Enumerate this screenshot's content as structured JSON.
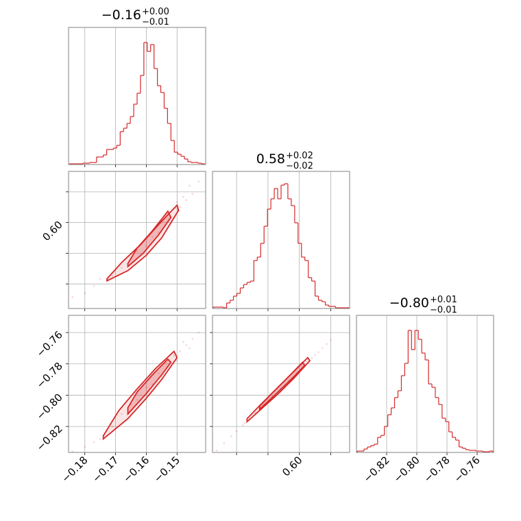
{
  "chart_data": [
    {
      "type": "histogram",
      "title": "−0.16",
      "title_upper": "+0.00",
      "title_lower": "−0.01",
      "color": "#d62728",
      "grid": true,
      "xlim": [
        -0.1853,
        -0.1407
      ],
      "ylim": [
        0,
        200
      ],
      "xticks": [
        -0.18,
        -0.17,
        -0.16,
        -0.15
      ],
      "bins": [
        -0.185,
        -0.1839,
        -0.1828,
        -0.1817,
        -0.1806,
        -0.1795,
        -0.1784,
        -0.1773,
        -0.1762,
        -0.1751,
        -0.174,
        -0.1729,
        -0.1718,
        -0.1707,
        -0.1696,
        -0.1685,
        -0.1674,
        -0.1663,
        -0.1652,
        -0.1641,
        -0.163,
        -0.1619,
        -0.1608,
        -0.1597,
        -0.1586,
        -0.1575,
        -0.1564,
        -0.1553,
        -0.1542,
        -0.1531,
        -0.152,
        -0.1509,
        -0.1498,
        -0.1487,
        -0.1476,
        -0.1465,
        -0.1454,
        -0.1443,
        -0.1432,
        -0.1421,
        -0.141
      ],
      "values": [
        1,
        1,
        1,
        1,
        2,
        2,
        3,
        3,
        11,
        11,
        14,
        22,
        22,
        24,
        28,
        48,
        53,
        60,
        70,
        88,
        104,
        130,
        178,
        165,
        175,
        140,
        115,
        105,
        82,
        60,
        35,
        18,
        15,
        12,
        8,
        4,
        3,
        3,
        2,
        1
      ]
    },
    {
      "type": "histogram",
      "title": "0.58",
      "title_upper": "+0.02",
      "title_lower": "−0.02",
      "color": "#d62728",
      "grid": true,
      "xlim": [
        0.517,
        0.648
      ],
      "ylim": [
        0,
        200
      ],
      "xticks": [
        0.54,
        0.57,
        0.6,
        0.63
      ],
      "bins": [
        0.5175,
        0.52075,
        0.524,
        0.52725,
        0.5305,
        0.53375,
        0.537,
        0.54025,
        0.5435,
        0.54675,
        0.55,
        0.55325,
        0.5565,
        0.55975,
        0.563,
        0.56625,
        0.5695,
        0.57275,
        0.576,
        0.57925,
        0.5825,
        0.58575,
        0.589,
        0.59225,
        0.5955,
        0.59875,
        0.602,
        0.60525,
        0.6085,
        0.61175,
        0.615,
        0.61825,
        0.6215,
        0.62475,
        0.628,
        0.63125,
        0.6345,
        0.63775,
        0.641,
        0.64425,
        0.6475
      ],
      "values": [
        2,
        2,
        2,
        1,
        8,
        12,
        18,
        22,
        30,
        35,
        38,
        40,
        70,
        75,
        95,
        120,
        145,
        160,
        175,
        160,
        180,
        182,
        160,
        150,
        125,
        95,
        75,
        70,
        45,
        40,
        18,
        12,
        10,
        5,
        3,
        3,
        1,
        1,
        1,
        1
      ]
    },
    {
      "type": "histogram",
      "title": "−0.80",
      "title_upper": "+0.01",
      "title_lower": "−0.01",
      "color": "#d62728",
      "grid": true,
      "xlim": [
        -0.84,
        -0.7491
      ],
      "ylim": [
        0,
        200
      ],
      "xticks": [
        {
          "value": -0.82,
          "label": "−0.82"
        },
        {
          "value": -0.8,
          "label": "−0.80"
        },
        {
          "value": -0.78,
          "label": "−0.78"
        },
        {
          "value": -0.76,
          "label": "−0.76"
        }
      ],
      "bins": [
        -0.8395,
        -0.83725,
        -0.835,
        -0.83275,
        -0.8305,
        -0.82825,
        -0.826,
        -0.82375,
        -0.8215,
        -0.81925,
        -0.817,
        -0.81475,
        -0.8125,
        -0.81025,
        -0.808,
        -0.80575,
        -0.8035,
        -0.80125,
        -0.799,
        -0.79675,
        -0.7945,
        -0.79225,
        -0.79,
        -0.78775,
        -0.7855,
        -0.78325,
        -0.781,
        -0.77875,
        -0.7765,
        -0.77425,
        -0.772,
        -0.76975,
        -0.7675,
        -0.76525,
        -0.763,
        -0.76075,
        -0.7585,
        -0.75625,
        -0.754,
        -0.75175,
        -0.7495
      ],
      "values": [
        2,
        2,
        5,
        8,
        10,
        12,
        22,
        25,
        38,
        55,
        65,
        80,
        90,
        112,
        130,
        178,
        150,
        178,
        165,
        145,
        135,
        100,
        95,
        80,
        70,
        50,
        45,
        30,
        22,
        18,
        8,
        6,
        4,
        3,
        3,
        2,
        2,
        1,
        1,
        2
      ]
    },
    {
      "type": "scatter",
      "color": "#d62728",
      "grid": true,
      "xlim": [
        -0.1853,
        -0.1407
      ],
      "ylim": [
        0.516,
        0.65
      ],
      "xticks": [
        -0.18,
        -0.17,
        -0.16,
        -0.15
      ],
      "yticks": [
        0.54,
        0.57,
        {
          "value": 0.6,
          "label": "0.60"
        },
        0.63
      ],
      "x": [
        -0.184,
        -0.18,
        -0.177,
        -0.175,
        -0.171,
        -0.168,
        -0.165,
        -0.163,
        -0.16,
        -0.158,
        -0.156,
        -0.153,
        -0.151,
        -0.149,
        -0.147,
        -0.145,
        -0.143,
        -0.146,
        -0.15,
        -0.148
      ],
      "y": [
        0.527,
        0.531,
        0.538,
        0.545,
        0.548,
        0.556,
        0.566,
        0.572,
        0.577,
        0.586,
        0.59,
        0.601,
        0.605,
        0.615,
        0.622,
        0.628,
        0.64,
        0.636,
        0.62,
        0.625
      ],
      "contours": [
        {
          "x": [
            -0.1728,
            -0.166,
            -0.16,
            -0.155,
            -0.1495,
            -0.15,
            -0.156,
            -0.162,
            -0.168,
            -0.1728
          ],
          "y": [
            0.543,
            0.553,
            0.568,
            0.585,
            0.612,
            0.617,
            0.598,
            0.578,
            0.561,
            0.545
          ]
        },
        {
          "x": [
            -0.166,
            -0.161,
            -0.156,
            -0.152,
            -0.153,
            -0.158,
            -0.163,
            -0.166
          ],
          "y": [
            0.557,
            0.57,
            0.588,
            0.605,
            0.611,
            0.592,
            0.575,
            0.56
          ]
        }
      ]
    },
    {
      "type": "scatter",
      "color": "#d62728",
      "grid": true,
      "xlim": [
        -0.1853,
        -0.1407
      ],
      "ylim": [
        -0.8366,
        -0.749
      ],
      "xticks": [
        {
          "value": -0.18,
          "label": "−0.18"
        },
        {
          "value": -0.17,
          "label": "−0.17"
        },
        {
          "value": -0.16,
          "label": "−0.16"
        },
        {
          "value": -0.15,
          "label": "−0.15"
        }
      ],
      "yticks": [
        {
          "value": -0.82,
          "label": "−0.82"
        },
        {
          "value": -0.8,
          "label": "−0.80"
        },
        {
          "value": -0.78,
          "label": "−0.78"
        },
        {
          "value": -0.76,
          "label": "−0.76"
        }
      ],
      "x": [
        -0.184,
        -0.18,
        -0.177,
        -0.175,
        -0.171,
        -0.168,
        -0.165,
        -0.163,
        -0.16,
        -0.158,
        -0.156,
        -0.153,
        -0.151,
        -0.149,
        -0.147,
        -0.145,
        -0.143,
        -0.146,
        -0.15,
        -0.148
      ],
      "y": [
        -0.836,
        -0.833,
        -0.83,
        -0.828,
        -0.82,
        -0.812,
        -0.806,
        -0.803,
        -0.795,
        -0.793,
        -0.786,
        -0.782,
        -0.775,
        -0.772,
        -0.768,
        -0.764,
        -0.76,
        -0.77,
        -0.778,
        -0.766
      ],
      "contours": [
        {
          "x": [
            -0.174,
            -0.166,
            -0.16,
            -0.155,
            -0.15,
            -0.151,
            -0.157,
            -0.163,
            -0.169,
            -0.174
          ],
          "y": [
            -0.828,
            -0.815,
            -0.802,
            -0.79,
            -0.776,
            -0.772,
            -0.783,
            -0.796,
            -0.81,
            -0.826
          ]
        },
        {
          "x": [
            -0.166,
            -0.16,
            -0.155,
            -0.152,
            -0.153,
            -0.158,
            -0.163,
            -0.166
          ],
          "y": [
            -0.812,
            -0.799,
            -0.787,
            -0.779,
            -0.777,
            -0.787,
            -0.798,
            -0.808
          ]
        }
      ]
    },
    {
      "type": "scatter",
      "color": "#d62728",
      "grid": true,
      "xlim": [
        0.517,
        0.648
      ],
      "ylim": [
        -0.8366,
        -0.749
      ],
      "xticks": [
        0.54,
        0.57,
        {
          "value": 0.6,
          "label": "0.60"
        },
        0.63
      ],
      "yticks": [
        -0.82,
        -0.8,
        -0.78,
        -0.76
      ],
      "x": [
        0.521,
        0.528,
        0.535,
        0.54,
        0.546,
        0.552,
        0.558,
        0.566,
        0.574,
        0.582,
        0.59,
        0.598,
        0.606,
        0.612,
        0.618,
        0.622,
        0.626,
        0.63,
        0.615,
        0.548
      ],
      "y": [
        -0.8354,
        -0.8308,
        -0.8263,
        -0.823,
        -0.8192,
        -0.8153,
        -0.8114,
        -0.8062,
        -0.801,
        -0.7958,
        -0.7906,
        -0.7855,
        -0.7803,
        -0.7764,
        -0.7725,
        -0.7699,
        -0.7673,
        -0.7647,
        -0.7744,
        -0.8179
      ],
      "contours": [
        {
          "x": [
            0.55,
            0.565,
            0.58,
            0.595,
            0.61,
            0.608,
            0.593,
            0.578,
            0.563,
            0.55
          ],
          "y": [
            -0.817,
            -0.808,
            -0.799,
            -0.789,
            -0.778,
            -0.776,
            -0.786,
            -0.796,
            -0.806,
            -0.815
          ]
        },
        {
          "x": [
            0.562,
            0.578,
            0.595,
            0.605,
            0.603,
            0.59,
            0.575,
            0.562
          ],
          "y": [
            -0.809,
            -0.799,
            -0.788,
            -0.781,
            -0.779,
            -0.788,
            -0.798,
            -0.807
          ]
        }
      ]
    }
  ]
}
